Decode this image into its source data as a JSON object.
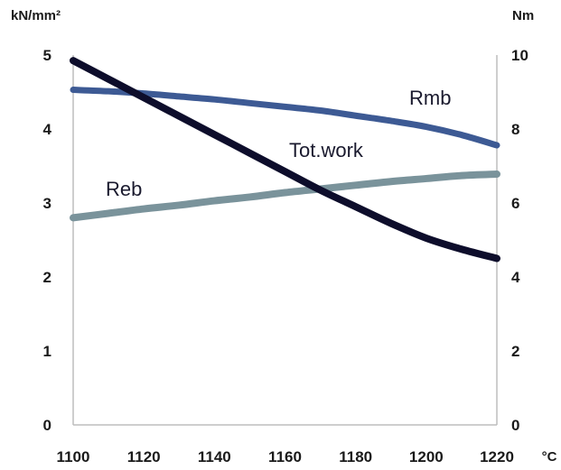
{
  "chart_data": {
    "type": "line",
    "x": [
      1100,
      1110,
      1120,
      1130,
      1140,
      1150,
      1160,
      1170,
      1180,
      1190,
      1200,
      1210,
      1220
    ],
    "xlim": [
      1100,
      1220
    ],
    "xticks": [
      1100,
      1120,
      1140,
      1160,
      1180,
      1200,
      1220
    ],
    "x_unit": "°C",
    "y_left": {
      "unit": "kN/mm²",
      "lim": [
        0,
        5
      ],
      "ticks": [
        0,
        1,
        2,
        3,
        4,
        5
      ]
    },
    "y_right": {
      "unit": "Nm",
      "lim": [
        0,
        10
      ],
      "ticks": [
        0,
        2,
        4,
        6,
        8,
        10
      ]
    },
    "grid": false,
    "series": [
      {
        "name": "Rmb",
        "axis": "left",
        "color": "#3d5a94",
        "values": [
          4.53,
          4.51,
          4.48,
          4.44,
          4.4,
          4.35,
          4.3,
          4.25,
          4.18,
          4.11,
          4.03,
          3.92,
          3.78
        ]
      },
      {
        "name": "Reb",
        "axis": "left",
        "color": "#7a939b",
        "values": [
          2.8,
          2.86,
          2.92,
          2.97,
          3.03,
          3.08,
          3.14,
          3.19,
          3.24,
          3.29,
          3.33,
          3.37,
          3.39
        ]
      },
      {
        "name": "Tot.work",
        "axis": "right",
        "color": "#0d0d2b",
        "values": [
          9.85,
          9.35,
          8.85,
          8.35,
          7.85,
          7.35,
          6.85,
          6.35,
          5.9,
          5.45,
          5.05,
          4.75,
          4.5
        ]
      }
    ]
  }
}
